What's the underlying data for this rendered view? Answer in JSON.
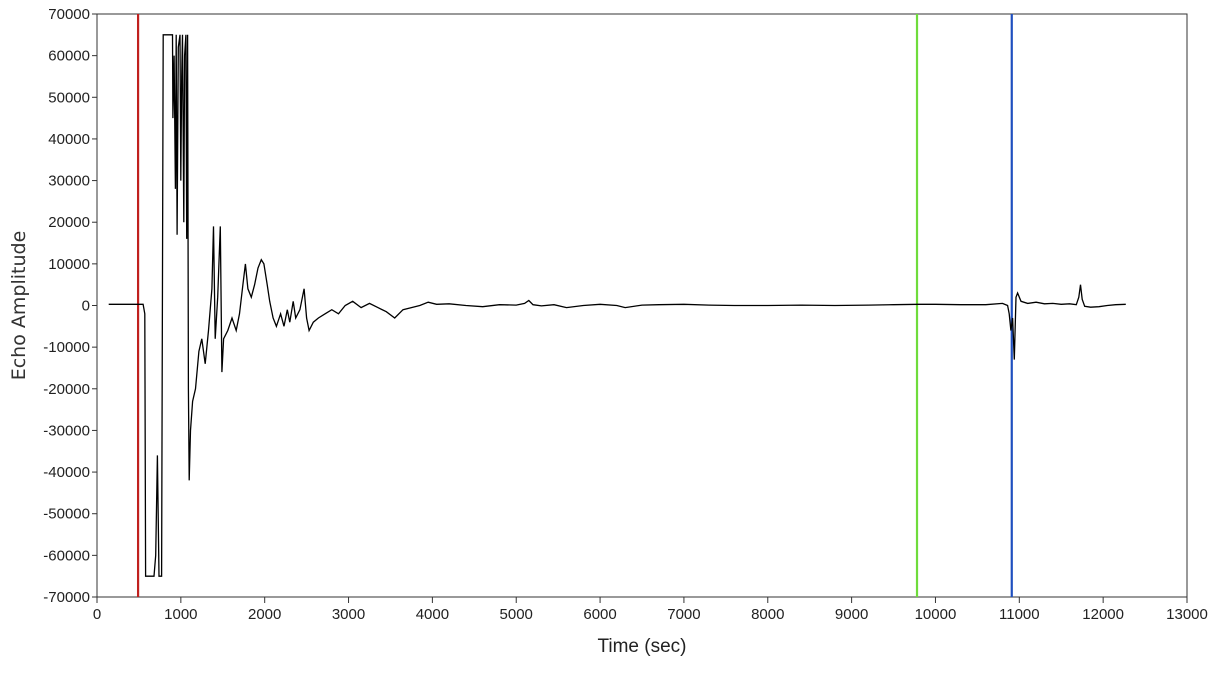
{
  "chart_data": {
    "type": "line",
    "title": "",
    "xlabel": "Time (sec)",
    "ylabel": "Echo Amplitude",
    "xlim": [
      0,
      13000
    ],
    "ylim": [
      -70000,
      70000
    ],
    "x_ticks": [
      0,
      1000,
      2000,
      3000,
      4000,
      5000,
      6000,
      7000,
      8000,
      9000,
      10000,
      11000,
      12000,
      13000
    ],
    "y_ticks": [
      70000,
      60000,
      50000,
      40000,
      30000,
      20000,
      10000,
      0,
      -10000,
      -20000,
      -30000,
      -40000,
      -50000,
      -60000,
      -70000
    ],
    "grid": false,
    "legend": "none",
    "vertical_markers": [
      {
        "x": 490,
        "color": "#c0201e"
      },
      {
        "x": 9780,
        "color": "#6fdc3c"
      },
      {
        "x": 10910,
        "color": "#1f4fbf"
      }
    ],
    "series": [
      {
        "color": "#000000",
        "points": [
          [
            140,
            300
          ],
          [
            500,
            300
          ],
          [
            550,
            300
          ],
          [
            570,
            -2000
          ],
          [
            580,
            -65000
          ],
          [
            680,
            -65000
          ],
          [
            700,
            -60000
          ],
          [
            720,
            -36000
          ],
          [
            740,
            -65000
          ],
          [
            770,
            -65000
          ],
          [
            790,
            65000
          ],
          [
            900,
            65000
          ],
          [
            905,
            45000
          ],
          [
            920,
            60000
          ],
          [
            935,
            28000
          ],
          [
            945,
            65000
          ],
          [
            955,
            17000
          ],
          [
            970,
            62000
          ],
          [
            990,
            65000
          ],
          [
            1000,
            30000
          ],
          [
            1010,
            55000
          ],
          [
            1020,
            65000
          ],
          [
            1035,
            20000
          ],
          [
            1045,
            60000
          ],
          [
            1060,
            65000
          ],
          [
            1070,
            16000
          ],
          [
            1080,
            65000
          ],
          [
            1090,
            -20000
          ],
          [
            1100,
            -42000
          ],
          [
            1115,
            -30000
          ],
          [
            1140,
            -23000
          ],
          [
            1175,
            -20000
          ],
          [
            1215,
            -11000
          ],
          [
            1250,
            -8000
          ],
          [
            1290,
            -14000
          ],
          [
            1330,
            -6000
          ],
          [
            1370,
            4000
          ],
          [
            1390,
            19000
          ],
          [
            1410,
            -8000
          ],
          [
            1440,
            2000
          ],
          [
            1470,
            19000
          ],
          [
            1490,
            -16000
          ],
          [
            1510,
            -8000
          ],
          [
            1560,
            -6000
          ],
          [
            1610,
            -3000
          ],
          [
            1660,
            -6000
          ],
          [
            1700,
            -2000
          ],
          [
            1740,
            5000
          ],
          [
            1770,
            10000
          ],
          [
            1800,
            4000
          ],
          [
            1840,
            2000
          ],
          [
            1880,
            5000
          ],
          [
            1920,
            9000
          ],
          [
            1960,
            11000
          ],
          [
            1990,
            10000
          ],
          [
            2030,
            5000
          ],
          [
            2060,
            1000
          ],
          [
            2100,
            -3000
          ],
          [
            2140,
            -5000
          ],
          [
            2190,
            -2000
          ],
          [
            2230,
            -5000
          ],
          [
            2270,
            -1000
          ],
          [
            2300,
            -4000
          ],
          [
            2340,
            1000
          ],
          [
            2370,
            -3000
          ],
          [
            2420,
            -1000
          ],
          [
            2470,
            4000
          ],
          [
            2500,
            -3000
          ],
          [
            2530,
            -6000
          ],
          [
            2580,
            -4000
          ],
          [
            2640,
            -3000
          ],
          [
            2720,
            -2000
          ],
          [
            2800,
            -1000
          ],
          [
            2880,
            -2000
          ],
          [
            2960,
            0
          ],
          [
            3050,
            1000
          ],
          [
            3150,
            -500
          ],
          [
            3250,
            500
          ],
          [
            3350,
            -500
          ],
          [
            3450,
            -1500
          ],
          [
            3550,
            -3000
          ],
          [
            3650,
            -1000
          ],
          [
            3750,
            -500
          ],
          [
            3850,
            0
          ],
          [
            3950,
            800
          ],
          [
            4050,
            300
          ],
          [
            4200,
            400
          ],
          [
            4400,
            0
          ],
          [
            4600,
            -300
          ],
          [
            4800,
            200
          ],
          [
            5000,
            100
          ],
          [
            5100,
            500
          ],
          [
            5150,
            1200
          ],
          [
            5200,
            200
          ],
          [
            5300,
            -100
          ],
          [
            5450,
            200
          ],
          [
            5600,
            -500
          ],
          [
            5800,
            0
          ],
          [
            6000,
            300
          ],
          [
            6200,
            0
          ],
          [
            6300,
            -500
          ],
          [
            6500,
            100
          ],
          [
            6700,
            200
          ],
          [
            7000,
            300
          ],
          [
            7300,
            100
          ],
          [
            7600,
            0
          ],
          [
            8000,
            0
          ],
          [
            8400,
            100
          ],
          [
            8800,
            0
          ],
          [
            9200,
            100
          ],
          [
            9500,
            200
          ],
          [
            9800,
            300
          ],
          [
            10000,
            300
          ],
          [
            10300,
            200
          ],
          [
            10600,
            200
          ],
          [
            10800,
            500
          ],
          [
            10860,
            0
          ],
          [
            10880,
            -2000
          ],
          [
            10900,
            -6000
          ],
          [
            10920,
            -3000
          ],
          [
            10940,
            -13000
          ],
          [
            10960,
            2000
          ],
          [
            10980,
            3000
          ],
          [
            11020,
            1000
          ],
          [
            11100,
            500
          ],
          [
            11200,
            800
          ],
          [
            11300,
            400
          ],
          [
            11400,
            500
          ],
          [
            11500,
            300
          ],
          [
            11600,
            400
          ],
          [
            11680,
            200
          ],
          [
            11710,
            2000
          ],
          [
            11730,
            5000
          ],
          [
            11750,
            1500
          ],
          [
            11780,
            -200
          ],
          [
            11850,
            -400
          ],
          [
            11950,
            -300
          ],
          [
            12050,
            0
          ],
          [
            12150,
            200
          ],
          [
            12270,
            300
          ]
        ]
      }
    ]
  }
}
